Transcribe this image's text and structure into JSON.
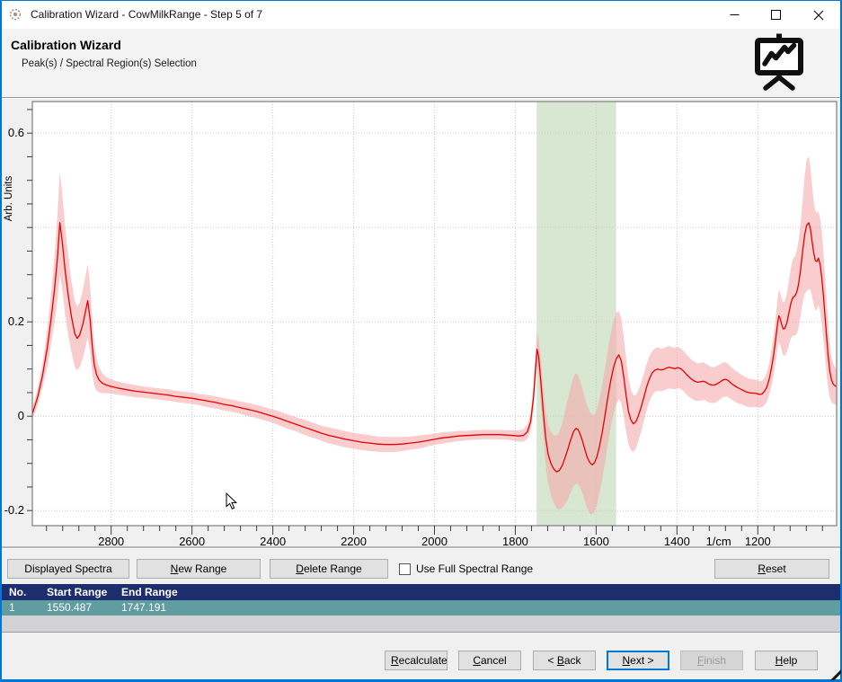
{
  "window": {
    "title": "Calibration Wizard - CowMilkRange - Step 5 of 7",
    "controls": [
      "minimize",
      "maximize",
      "close"
    ],
    "accent_color": "#0077d4"
  },
  "header": {
    "title": "Calibration Wizard",
    "subtitle": "Peak(s) / Spectral Region(s) Selection"
  },
  "chart_data": {
    "type": "line",
    "title": "",
    "ylabel": "Arb. Units",
    "x_unit": "1/cm",
    "grid": true,
    "x_axis": {
      "min": 1005,
      "max": 2995,
      "reversed": true,
      "tick_values": [
        2800,
        2600,
        2400,
        2200,
        2000,
        1800,
        1600,
        1400,
        1200
      ],
      "tick_labels": [
        "2800",
        "2600",
        "2400",
        "2200",
        "2000",
        "1800",
        "1600",
        "1400",
        "1200"
      ],
      "minor_tick_step": 40,
      "unit_label": "1/cm",
      "unit_label_at": 1297
    },
    "y_axis": {
      "min": -0.232,
      "max": 0.667,
      "gridlines": [
        0.6,
        0.4,
        0.2,
        0.0,
        -0.2
      ],
      "tick_values": [
        0.6,
        0.2,
        0.0,
        -0.2
      ],
      "tick_labels": [
        "0.6",
        "0.2",
        "0",
        "-0.2"
      ],
      "minor_tick_step": 0.05
    },
    "selected_region": {
      "start_wavenumber": 1550.487,
      "end_wavenumber": 1747.191
    },
    "region_color": "#d7e7d1",
    "series": [
      {
        "name": "mean spectrum with spread band",
        "line_color": "#e60000",
        "band_color": "#f5abab",
        "points": [
          [
            2995,
            0.005,
            0.012
          ],
          [
            2982,
            0.04,
            0.018
          ],
          [
            2970,
            0.085,
            0.025
          ],
          [
            2958,
            0.145,
            0.04
          ],
          [
            2948,
            0.21,
            0.055
          ],
          [
            2940,
            0.27,
            0.07
          ],
          [
            2933,
            0.335,
            0.09
          ],
          [
            2927,
            0.41,
            0.11
          ],
          [
            2921,
            0.37,
            0.1
          ],
          [
            2914,
            0.31,
            0.095
          ],
          [
            2906,
            0.255,
            0.085
          ],
          [
            2898,
            0.21,
            0.075
          ],
          [
            2890,
            0.175,
            0.07
          ],
          [
            2884,
            0.165,
            0.068
          ],
          [
            2878,
            0.172,
            0.068
          ],
          [
            2870,
            0.195,
            0.072
          ],
          [
            2864,
            0.22,
            0.075
          ],
          [
            2858,
            0.245,
            0.078
          ],
          [
            2852,
            0.205,
            0.07
          ],
          [
            2847,
            0.15,
            0.058
          ],
          [
            2842,
            0.11,
            0.045
          ],
          [
            2836,
            0.088,
            0.034
          ],
          [
            2830,
            0.077,
            0.027
          ],
          [
            2822,
            0.07,
            0.021
          ],
          [
            2812,
            0.066,
            0.017
          ],
          [
            2800,
            0.063,
            0.015
          ],
          [
            2780,
            0.059,
            0.014
          ],
          [
            2760,
            0.056,
            0.013
          ],
          [
            2740,
            0.053,
            0.013
          ],
          [
            2720,
            0.051,
            0.012
          ],
          [
            2700,
            0.049,
            0.012
          ],
          [
            2680,
            0.047,
            0.012
          ],
          [
            2660,
            0.045,
            0.012
          ],
          [
            2640,
            0.042,
            0.012
          ],
          [
            2620,
            0.04,
            0.012
          ],
          [
            2600,
            0.038,
            0.012
          ],
          [
            2580,
            0.035,
            0.012
          ],
          [
            2560,
            0.032,
            0.013
          ],
          [
            2540,
            0.029,
            0.013
          ],
          [
            2520,
            0.025,
            0.013
          ],
          [
            2500,
            0.022,
            0.013
          ],
          [
            2480,
            0.018,
            0.013
          ],
          [
            2460,
            0.014,
            0.014
          ],
          [
            2440,
            0.01,
            0.014
          ],
          [
            2420,
            0.005,
            0.014
          ],
          [
            2400,
            0.0,
            0.014
          ],
          [
            2380,
            -0.006,
            0.015
          ],
          [
            2360,
            -0.012,
            0.015
          ],
          [
            2340,
            -0.018,
            0.015
          ],
          [
            2320,
            -0.024,
            0.016
          ],
          [
            2300,
            -0.03,
            0.016
          ],
          [
            2280,
            -0.036,
            0.016
          ],
          [
            2260,
            -0.041,
            0.017
          ],
          [
            2240,
            -0.045,
            0.017
          ],
          [
            2220,
            -0.049,
            0.017
          ],
          [
            2200,
            -0.052,
            0.017
          ],
          [
            2180,
            -0.055,
            0.017
          ],
          [
            2160,
            -0.057,
            0.017
          ],
          [
            2140,
            -0.059,
            0.016
          ],
          [
            2120,
            -0.06,
            0.016
          ],
          [
            2100,
            -0.06,
            0.016
          ],
          [
            2080,
            -0.059,
            0.015
          ],
          [
            2060,
            -0.057,
            0.014
          ],
          [
            2040,
            -0.055,
            0.014
          ],
          [
            2020,
            -0.052,
            0.013
          ],
          [
            2000,
            -0.049,
            0.012
          ],
          [
            1980,
            -0.046,
            0.012
          ],
          [
            1960,
            -0.044,
            0.011
          ],
          [
            1940,
            -0.042,
            0.011
          ],
          [
            1920,
            -0.041,
            0.01
          ],
          [
            1900,
            -0.04,
            0.01
          ],
          [
            1880,
            -0.039,
            0.01
          ],
          [
            1860,
            -0.039,
            0.01
          ],
          [
            1840,
            -0.039,
            0.01
          ],
          [
            1820,
            -0.04,
            0.01
          ],
          [
            1805,
            -0.041,
            0.011
          ],
          [
            1792,
            -0.042,
            0.012
          ],
          [
            1780,
            -0.041,
            0.013
          ],
          [
            1770,
            -0.033,
            0.015
          ],
          [
            1762,
            -0.012,
            0.018
          ],
          [
            1755,
            0.04,
            0.025
          ],
          [
            1750,
            0.1,
            0.032
          ],
          [
            1746,
            0.142,
            0.037
          ],
          [
            1742,
            0.125,
            0.04
          ],
          [
            1737,
            0.075,
            0.045
          ],
          [
            1731,
            0.01,
            0.05
          ],
          [
            1725,
            -0.045,
            0.057
          ],
          [
            1719,
            -0.08,
            0.062
          ],
          [
            1712,
            -0.1,
            0.067
          ],
          [
            1705,
            -0.112,
            0.072
          ],
          [
            1698,
            -0.118,
            0.077
          ],
          [
            1691,
            -0.115,
            0.082
          ],
          [
            1684,
            -0.105,
            0.09
          ],
          [
            1677,
            -0.088,
            0.098
          ],
          [
            1670,
            -0.07,
            0.106
          ],
          [
            1663,
            -0.05,
            0.112
          ],
          [
            1656,
            -0.033,
            0.116
          ],
          [
            1650,
            -0.026,
            0.117
          ],
          [
            1645,
            -0.028,
            0.116
          ],
          [
            1640,
            -0.037,
            0.113
          ],
          [
            1634,
            -0.052,
            0.111
          ],
          [
            1628,
            -0.07,
            0.11
          ],
          [
            1622,
            -0.087,
            0.109
          ],
          [
            1616,
            -0.098,
            0.108
          ],
          [
            1610,
            -0.103,
            0.106
          ],
          [
            1604,
            -0.099,
            0.103
          ],
          [
            1598,
            -0.086,
            0.101
          ],
          [
            1592,
            -0.065,
            0.1
          ],
          [
            1585,
            -0.035,
            0.1
          ],
          [
            1578,
            0.002,
            0.1
          ],
          [
            1571,
            0.04,
            0.1
          ],
          [
            1564,
            0.075,
            0.1
          ],
          [
            1557,
            0.103,
            0.099
          ],
          [
            1550,
            0.122,
            0.097
          ],
          [
            1544,
            0.13,
            0.094
          ],
          [
            1538,
            0.118,
            0.09
          ],
          [
            1532,
            0.085,
            0.084
          ],
          [
            1526,
            0.045,
            0.077
          ],
          [
            1520,
            0.01,
            0.07
          ],
          [
            1514,
            -0.008,
            0.064
          ],
          [
            1508,
            -0.016,
            0.06
          ],
          [
            1502,
            -0.012,
            0.057
          ],
          [
            1496,
            0.0,
            0.054
          ],
          [
            1489,
            0.018,
            0.052
          ],
          [
            1482,
            0.04,
            0.05
          ],
          [
            1475,
            0.062,
            0.049
          ],
          [
            1468,
            0.08,
            0.048
          ],
          [
            1461,
            0.092,
            0.047
          ],
          [
            1454,
            0.098,
            0.046
          ],
          [
            1447,
            0.1,
            0.046
          ],
          [
            1440,
            0.098,
            0.045
          ],
          [
            1433,
            0.099,
            0.045
          ],
          [
            1426,
            0.102,
            0.045
          ],
          [
            1419,
            0.104,
            0.045
          ],
          [
            1412,
            0.102,
            0.044
          ],
          [
            1405,
            0.101,
            0.044
          ],
          [
            1398,
            0.103,
            0.044
          ],
          [
            1391,
            0.101,
            0.043
          ],
          [
            1384,
            0.096,
            0.043
          ],
          [
            1377,
            0.089,
            0.042
          ],
          [
            1370,
            0.083,
            0.042
          ],
          [
            1363,
            0.078,
            0.041
          ],
          [
            1356,
            0.074,
            0.041
          ],
          [
            1349,
            0.072,
            0.04
          ],
          [
            1342,
            0.073,
            0.04
          ],
          [
            1335,
            0.074,
            0.04
          ],
          [
            1328,
            0.072,
            0.039
          ],
          [
            1321,
            0.068,
            0.039
          ],
          [
            1314,
            0.066,
            0.038
          ],
          [
            1307,
            0.066,
            0.038
          ],
          [
            1300,
            0.069,
            0.038
          ],
          [
            1293,
            0.073,
            0.037
          ],
          [
            1286,
            0.077,
            0.037
          ],
          [
            1279,
            0.078,
            0.036
          ],
          [
            1272,
            0.075,
            0.035
          ],
          [
            1265,
            0.069,
            0.034
          ],
          [
            1258,
            0.065,
            0.033
          ],
          [
            1251,
            0.061,
            0.033
          ],
          [
            1244,
            0.058,
            0.032
          ],
          [
            1237,
            0.055,
            0.031
          ],
          [
            1230,
            0.052,
            0.031
          ],
          [
            1223,
            0.05,
            0.03
          ],
          [
            1216,
            0.049,
            0.03
          ],
          [
            1209,
            0.049,
            0.029
          ],
          [
            1202,
            0.048,
            0.029
          ],
          [
            1196,
            0.046,
            0.028
          ],
          [
            1190,
            0.047,
            0.028
          ],
          [
            1184,
            0.052,
            0.029
          ],
          [
            1178,
            0.061,
            0.031
          ],
          [
            1172,
            0.078,
            0.034
          ],
          [
            1166,
            0.103,
            0.038
          ],
          [
            1160,
            0.135,
            0.043
          ],
          [
            1155,
            0.168,
            0.048
          ],
          [
            1151,
            0.196,
            0.052
          ],
          [
            1148,
            0.213,
            0.055
          ],
          [
            1145,
            0.208,
            0.055
          ],
          [
            1141,
            0.195,
            0.055
          ],
          [
            1137,
            0.185,
            0.056
          ],
          [
            1133,
            0.186,
            0.058
          ],
          [
            1128,
            0.198,
            0.062
          ],
          [
            1123,
            0.219,
            0.068
          ],
          [
            1118,
            0.24,
            0.075
          ],
          [
            1113,
            0.252,
            0.081
          ],
          [
            1108,
            0.255,
            0.085
          ],
          [
            1104,
            0.262,
            0.088
          ],
          [
            1099,
            0.28,
            0.092
          ],
          [
            1094,
            0.312,
            0.098
          ],
          [
            1089,
            0.35,
            0.108
          ],
          [
            1084,
            0.385,
            0.125
          ],
          [
            1079,
            0.405,
            0.14
          ],
          [
            1074,
            0.41,
            0.14
          ],
          [
            1070,
            0.398,
            0.13
          ],
          [
            1066,
            0.372,
            0.118
          ],
          [
            1062,
            0.348,
            0.11
          ],
          [
            1058,
            0.33,
            0.106
          ],
          [
            1054,
            0.328,
            0.102
          ],
          [
            1050,
            0.335,
            0.099
          ],
          [
            1046,
            0.322,
            0.098
          ],
          [
            1042,
            0.295,
            0.097
          ],
          [
            1038,
            0.258,
            0.094
          ],
          [
            1034,
            0.215,
            0.088
          ],
          [
            1030,
            0.17,
            0.079
          ],
          [
            1026,
            0.128,
            0.068
          ],
          [
            1022,
            0.096,
            0.057
          ],
          [
            1018,
            0.078,
            0.048
          ],
          [
            1014,
            0.069,
            0.043
          ],
          [
            1010,
            0.065,
            0.04
          ],
          [
            1006,
            0.063,
            0.038
          ]
        ]
      }
    ]
  },
  "toolbar": {
    "buttons": [
      {
        "label": "Displayed Spectra",
        "key": null
      },
      {
        "label": "New Range",
        "key": "N"
      },
      {
        "label": "Delete Range",
        "key": "D"
      },
      {
        "label": "Reset",
        "key": "R"
      }
    ],
    "checkbox": {
      "label": "Use Full Spectral Range",
      "checked": false
    }
  },
  "table": {
    "columns": [
      "No.",
      "Start Range",
      "End Range"
    ],
    "rows": [
      {
        "no": "1",
        "start": "1550.487",
        "end": "1747.191",
        "selected": true
      }
    ],
    "header_color": "#1e2d6e",
    "selected_row_color": "#5f9da0"
  },
  "footer": {
    "buttons": [
      {
        "label": "Recalculate",
        "key": "R",
        "enabled": true,
        "default": false
      },
      {
        "label": "Cancel",
        "key": "C",
        "enabled": true,
        "default": false
      },
      {
        "label": "< Back",
        "key": "B",
        "enabled": true,
        "default": false
      },
      {
        "label": "Next >",
        "key": "N",
        "enabled": true,
        "default": true
      },
      {
        "label": "Finish",
        "key": "F",
        "enabled": false,
        "default": false
      },
      {
        "label": "Help",
        "key": "H",
        "enabled": true,
        "default": false
      }
    ]
  }
}
